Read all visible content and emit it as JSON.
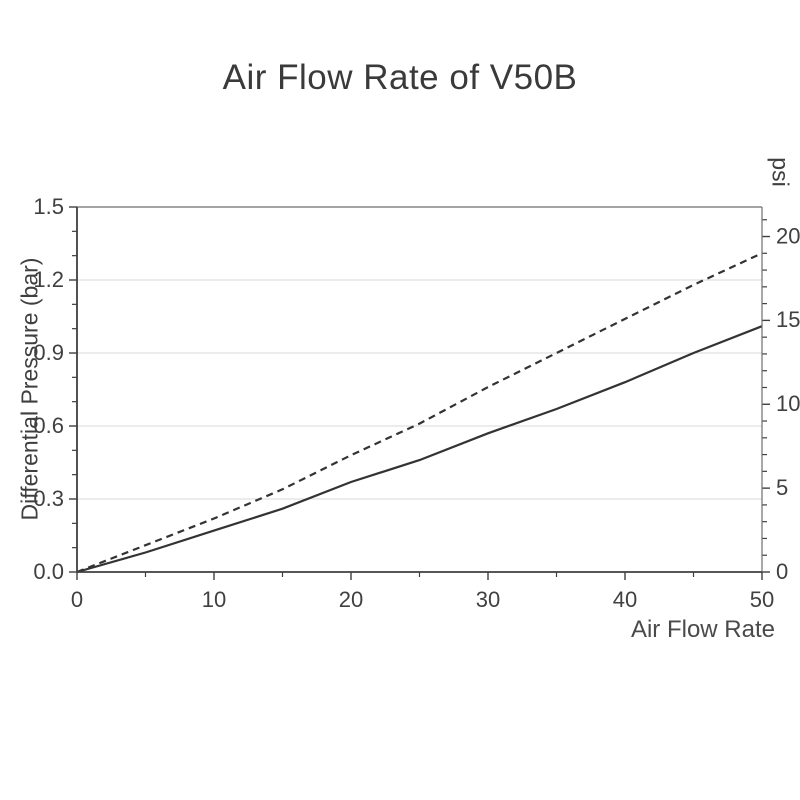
{
  "chart_data": {
    "type": "line",
    "title": "Air Flow Rate of V50B",
    "xlabel": "Air Flow Rate",
    "ylabel_left": "Differential Pressure (bar)",
    "ylabel_right": "psi",
    "grid": "horizontal-major-only",
    "legend": "none",
    "x_range": [
      0,
      50
    ],
    "y_left_range": [
      0,
      1.5
    ],
    "y_right_range": [
      0,
      21.76
    ],
    "x_ticks": {
      "values": [
        0,
        10,
        20,
        30,
        40,
        50
      ],
      "labels": [
        "0",
        "10",
        "20",
        "30",
        "40",
        "50"
      ],
      "minor_step": 5
    },
    "y_left_ticks": {
      "values": [
        0,
        0.3,
        0.6,
        0.9,
        1.2,
        1.5
      ],
      "labels": [
        "0.0",
        "0.3",
        "0.6",
        "0.9",
        "1.2",
        "1.5"
      ],
      "minor_step": 0.1
    },
    "y_right_ticks": {
      "values": [
        0,
        5,
        10,
        15,
        20
      ],
      "labels": [
        "0",
        "5",
        "10",
        "15",
        "20"
      ],
      "minor_step": 1
    },
    "series": [
      {
        "name": "upper-curve",
        "line_style": "dashed",
        "x": [
          0,
          5,
          10,
          15,
          20,
          25,
          30,
          35,
          40,
          45,
          50
        ],
        "y_bar": [
          0,
          0.11,
          0.22,
          0.34,
          0.48,
          0.61,
          0.76,
          0.9,
          1.04,
          1.18,
          1.31
        ],
        "y_psi": [
          0,
          1.6,
          3.2,
          4.9,
          7.0,
          8.8,
          11.0,
          13.1,
          15.1,
          17.1,
          19.0
        ]
      },
      {
        "name": "lower-curve",
        "line_style": "solid",
        "x": [
          0,
          5,
          10,
          15,
          20,
          25,
          30,
          35,
          40,
          45,
          50
        ],
        "y_bar": [
          0,
          0.08,
          0.17,
          0.26,
          0.37,
          0.46,
          0.57,
          0.67,
          0.78,
          0.9,
          1.01
        ],
        "y_psi": [
          0,
          1.2,
          2.5,
          3.8,
          5.4,
          6.7,
          8.3,
          9.7,
          11.3,
          13.1,
          14.6
        ]
      }
    ],
    "colors": {
      "background": "#ffffff",
      "text": "#3f3f3f",
      "tick_label": "#404040",
      "axis_main": "#3f3f3f",
      "axis_frame": "#6e6e6e",
      "grid": "#d9d9d9",
      "curve": "#333333"
    }
  }
}
